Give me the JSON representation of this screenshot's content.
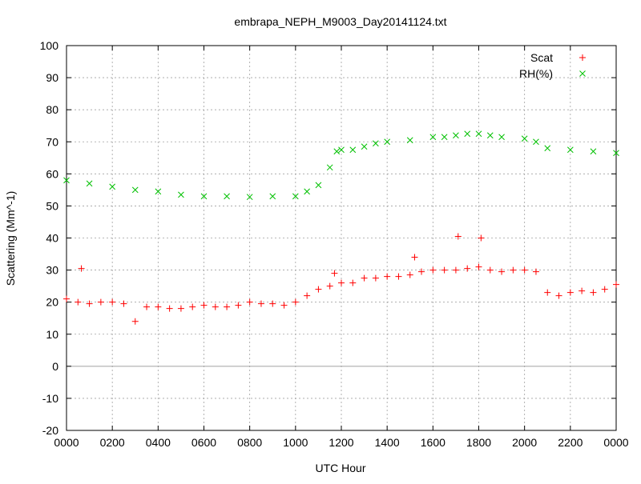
{
  "chart_data": {
    "type": "scatter",
    "title": "embrapa_NEPH_M9003_Day20141124.txt",
    "x_label": "UTC Hour",
    "y_label": "Scattering (Mm^-1)",
    "xlim": [
      0,
      24
    ],
    "ylim": [
      -20,
      100
    ],
    "xticks": [
      {
        "value": 0,
        "label": "0000"
      },
      {
        "value": 2,
        "label": "0200"
      },
      {
        "value": 4,
        "label": "0400"
      },
      {
        "value": 6,
        "label": "0600"
      },
      {
        "value": 8,
        "label": "0800"
      },
      {
        "value": 10,
        "label": "1000"
      },
      {
        "value": 12,
        "label": "1200"
      },
      {
        "value": 14,
        "label": "1400"
      },
      {
        "value": 16,
        "label": "1600"
      },
      {
        "value": 18,
        "label": "1800"
      },
      {
        "value": 20,
        "label": "2000"
      },
      {
        "value": 22,
        "label": "2200"
      },
      {
        "value": 24,
        "label": "0000"
      }
    ],
    "yticks": [
      -20,
      -10,
      0,
      10,
      20,
      30,
      40,
      50,
      60,
      70,
      80,
      90,
      100
    ],
    "grid": true,
    "legend": "top-right",
    "series": [
      {
        "name": "Scat",
        "color": "#ff0000",
        "marker": "plus",
        "x": [
          0,
          0.5,
          0.65,
          1,
          1.5,
          2,
          2.5,
          3,
          3.5,
          4,
          4.5,
          5,
          5.5,
          6,
          6.5,
          7,
          7.5,
          8,
          8.5,
          9,
          9.5,
          10,
          10.5,
          11,
          11.5,
          11.7,
          12,
          12.5,
          13,
          13.5,
          14,
          14.5,
          15,
          15.2,
          15.5,
          16,
          16.5,
          17,
          17.1,
          17.5,
          18,
          18.1,
          18.5,
          19,
          19.5,
          20,
          20.5,
          21,
          21.5,
          22,
          22.5,
          23,
          23.5,
          24
        ],
        "values": [
          21,
          20,
          30.5,
          19.5,
          20,
          20,
          19.5,
          14,
          18.5,
          18.5,
          18,
          18,
          18.5,
          19,
          18.5,
          18.5,
          19,
          20,
          19.5,
          19.5,
          19,
          20,
          22,
          24,
          25,
          29,
          26,
          26,
          27.5,
          27.5,
          28,
          28,
          28.5,
          34,
          29.5,
          30,
          30,
          30,
          40.5,
          30.5,
          31,
          40,
          30,
          29.5,
          30,
          30,
          29.5,
          23,
          22,
          23,
          23.5,
          23,
          24,
          25.5
        ]
      },
      {
        "name": "RH(%)",
        "color": "#00c000",
        "marker": "cross",
        "x": [
          0,
          1,
          2,
          3,
          4,
          5,
          6,
          7,
          8,
          9,
          10,
          10.5,
          11,
          11.5,
          11.8,
          12,
          12.5,
          13,
          13.5,
          14,
          15,
          16,
          16.5,
          17,
          17.5,
          18,
          18.5,
          19,
          20,
          20.5,
          21,
          22,
          23,
          24
        ],
        "values": [
          58,
          57,
          56,
          55,
          54.5,
          53.5,
          53,
          53,
          52.8,
          53,
          53,
          54.5,
          56.5,
          62,
          67,
          67.5,
          67.5,
          68.5,
          69.5,
          70,
          70.5,
          71.5,
          71.5,
          72,
          72.5,
          72.5,
          72,
          71.5,
          71,
          70,
          68,
          67.5,
          67,
          66.5
        ]
      }
    ]
  }
}
